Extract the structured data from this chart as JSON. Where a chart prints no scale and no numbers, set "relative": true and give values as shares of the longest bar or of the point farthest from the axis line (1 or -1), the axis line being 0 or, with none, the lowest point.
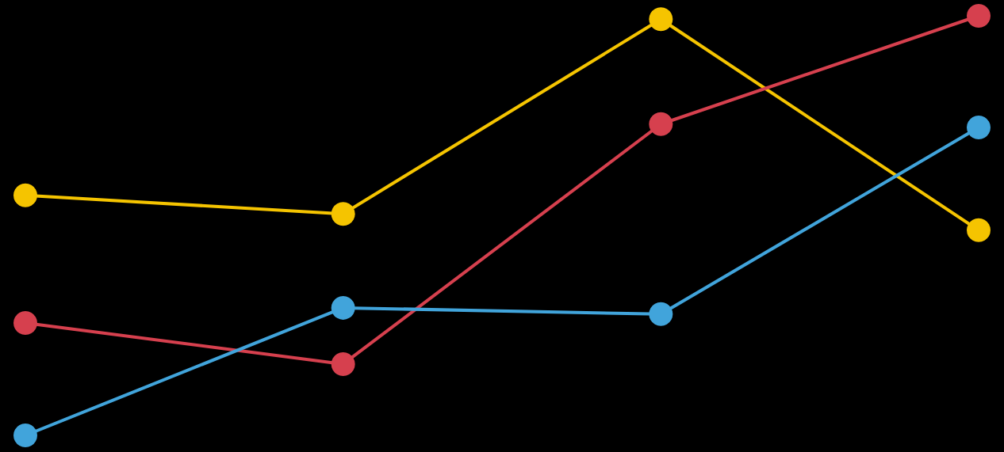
{
  "chart_data": {
    "type": "line",
    "relative": true,
    "categories": [
      null,
      null,
      null,
      null
    ],
    "marker": "circle",
    "line_style": "solid",
    "series": [
      {
        "color": "#f5c400",
        "values": [
          0.572,
          0.528,
          0.992,
          0.489
        ]
      },
      {
        "color": "#d6404e",
        "values": [
          0.268,
          0.17,
          0.742,
          1.0
        ]
      },
      {
        "color": "#41a4db",
        "values": [
          0,
          0.304,
          0.289,
          0.734
        ]
      }
    ]
  }
}
